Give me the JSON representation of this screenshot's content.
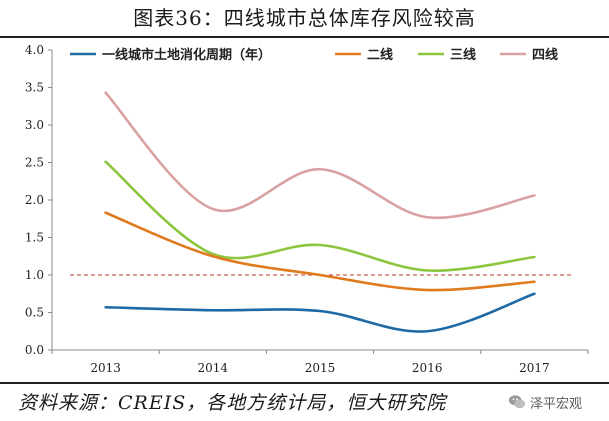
{
  "title": "图表36：四线城市总体库存风险较高",
  "source": "资料来源：CREIS，各地方统计局，恒大研究院",
  "watermark": {
    "text": "泽平宏观",
    "icon": "wechat-icon"
  },
  "chart_data": {
    "type": "line",
    "title": "",
    "xlabel": "",
    "ylabel": "",
    "categories": [
      "2013",
      "2014",
      "2015",
      "2016",
      "2017"
    ],
    "ylim": [
      0.0,
      4.0
    ],
    "yticks": [
      "0.0",
      "0.5",
      "1.0",
      "1.5",
      "2.0",
      "2.5",
      "3.0",
      "3.5",
      "4.0"
    ],
    "grid": false,
    "legend": "top",
    "reference_line": {
      "y": 1.0,
      "color": "#c0392b",
      "style": "dashed"
    },
    "series": [
      {
        "name": "一线城市土地消化周期（年）",
        "color": "#1f6aa5",
        "values": [
          0.57,
          0.53,
          0.52,
          0.25,
          0.75
        ]
      },
      {
        "name": "二线",
        "color": "#e07a1f",
        "values": [
          1.83,
          1.25,
          1.0,
          0.8,
          0.91
        ]
      },
      {
        "name": "三线",
        "color": "#8cc63f",
        "values": [
          2.51,
          1.28,
          1.4,
          1.06,
          1.24
        ]
      },
      {
        "name": "四线",
        "color": "#d9a1a1",
        "values": [
          3.43,
          1.88,
          2.41,
          1.77,
          2.06
        ]
      }
    ]
  }
}
